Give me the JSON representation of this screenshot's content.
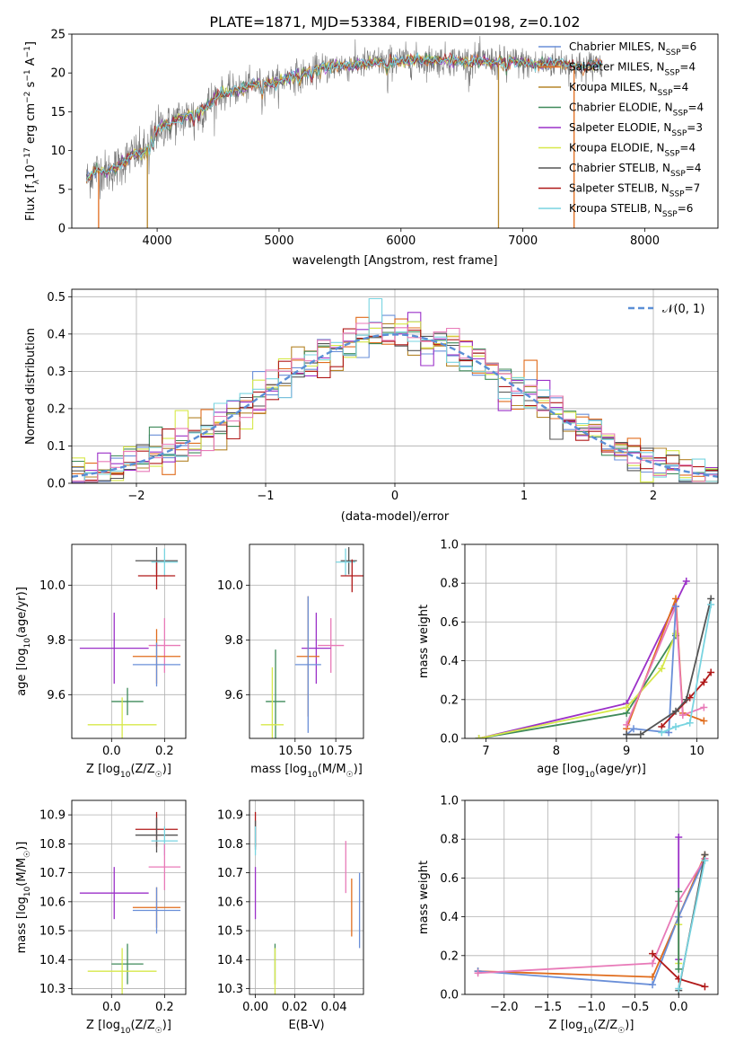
{
  "figure": {
    "title": "PLATE=1871, MJD=53384, FIBERID=0198, z=0.102"
  },
  "colors": {
    "Chabrier MILES": "#6a8fd8",
    "Salpeter MILES": "#e06c1c",
    "Kroupa MILES": "#b5852a",
    "Chabrier ELODIE": "#3f8a5a",
    "Salpeter ELODIE": "#9b30c8",
    "Kroupa ELODIE": "#d7e84a",
    "Chabrier STELIB": "#555555",
    "Salpeter STELIB": "#b01818",
    "Kroupa STELIB": "#78d4e0",
    "Extra pink": "#e87ab8",
    "Extra olive": "#9bbf2a",
    "normal": "#5b8fd6",
    "grid": "#b0b0b0"
  },
  "chart_data": [
    {
      "id": "spectrum",
      "type": "line",
      "xlabel": "wavelength [Angstrom, rest frame]",
      "ylabel": "Flux [f_λ10^-17 erg cm^-2 s^-1 A^-1]",
      "xlim": [
        3300,
        8600
      ],
      "ylim": [
        0,
        25
      ],
      "xticks": [
        4000,
        5000,
        6000,
        7000,
        8000
      ],
      "yticks": [
        0,
        5,
        10,
        15,
        20,
        25
      ],
      "grid": false,
      "legend_position": "right",
      "legend": [
        {
          "label": "Chabrier MILES, N",
          "sub": "SSP",
          "n": "=6",
          "color": "#6a8fd8"
        },
        {
          "label": "Salpeter MILES, N",
          "sub": "SSP",
          "n": "=4",
          "color": "#e06c1c"
        },
        {
          "label": "Kroupa MILES, N",
          "sub": "SSP",
          "n": "=4",
          "color": "#b5852a"
        },
        {
          "label": "Chabrier ELODIE, N",
          "sub": "SSP",
          "n": "=4",
          "color": "#3f8a5a"
        },
        {
          "label": "Salpeter ELODIE, N",
          "sub": "SSP",
          "n": "=3",
          "color": "#9b30c8"
        },
        {
          "label": "Kroupa ELODIE, N",
          "sub": "SSP",
          "n": "=4",
          "color": "#d7e84a"
        },
        {
          "label": "Chabrier STELIB, N",
          "sub": "SSP",
          "n": "=4",
          "color": "#555555"
        },
        {
          "label": "Salpeter STELIB, N",
          "sub": "SSP",
          "n": "=7",
          "color": "#b01818"
        },
        {
          "label": "Kroupa STELIB, N",
          "sub": "SSP",
          "n": "=6",
          "color": "#78d4e0"
        }
      ],
      "continuum": [
        [
          3420,
          6.2
        ],
        [
          3500,
          7.5
        ],
        [
          3600,
          7.2
        ],
        [
          3700,
          8.2
        ],
        [
          3800,
          9.5
        ],
        [
          3900,
          9.8
        ],
        [
          4000,
          12.8
        ],
        [
          4100,
          13.5
        ],
        [
          4200,
          14.2
        ],
        [
          4300,
          14.6
        ],
        [
          4400,
          15.6
        ],
        [
          4500,
          17.2
        ],
        [
          4600,
          17.6
        ],
        [
          4700,
          18.0
        ],
        [
          4800,
          18.5
        ],
        [
          4900,
          18.6
        ],
        [
          5000,
          18.8
        ],
        [
          5100,
          19.6
        ],
        [
          5200,
          19.8
        ],
        [
          5300,
          20.4
        ],
        [
          5400,
          20.7
        ],
        [
          5500,
          21.0
        ],
        [
          5600,
          21.0
        ],
        [
          5700,
          21.2
        ],
        [
          5800,
          21.4
        ],
        [
          5900,
          21.5
        ],
        [
          6000,
          21.6
        ],
        [
          6100,
          21.6
        ],
        [
          6200,
          21.6
        ],
        [
          6300,
          21.6
        ],
        [
          6400,
          21.7
        ],
        [
          6500,
          21.5
        ],
        [
          6600,
          21.6
        ],
        [
          6700,
          21.6
        ],
        [
          6800,
          21.3
        ],
        [
          6900,
          21.5
        ],
        [
          7000,
          21.3
        ],
        [
          7100,
          21.0
        ],
        [
          7200,
          21.2
        ],
        [
          7300,
          21.4
        ],
        [
          7400,
          21.0
        ],
        [
          7500,
          20.7
        ],
        [
          7600,
          21.2
        ]
      ],
      "dropouts": [
        {
          "x": 3520,
          "color": "#e06c1c"
        },
        {
          "x": 3920,
          "color": "#b5852a"
        },
        {
          "x": 6800,
          "color": "#b5852a"
        },
        {
          "x": 7420,
          "color": "#e06c1c"
        }
      ]
    },
    {
      "id": "residuals",
      "type": "step-histogram",
      "xlabel": "(data-model)/error",
      "ylabel": "Normed distribution",
      "xlim": [
        -2.5,
        2.5
      ],
      "ylim": [
        0,
        0.52
      ],
      "xticks": [
        -2,
        -1,
        0,
        1,
        2
      ],
      "yticks": [
        0.0,
        0.1,
        0.2,
        0.3,
        0.4,
        0.5
      ],
      "grid": true,
      "legend_position": "upper right",
      "normal_label": "𝒩(0, 1)",
      "bin_width": 0.1
    },
    {
      "id": "age_vs_Z",
      "type": "errorbar",
      "xlabel": "Z [log₁₀(Z/Z☉)]",
      "ylabel": "age  [log₁₀(age/yr)]",
      "xlim": [
        -0.15,
        0.28
      ],
      "ylim": [
        9.44,
        10.15
      ],
      "xticks": [
        0.0,
        0.2
      ],
      "yticks": [
        9.6,
        9.8,
        10.0
      ],
      "grid": true,
      "points": [
        {
          "x": 0.17,
          "xe": 0.08,
          "y": 10.09,
          "ye": 0.05,
          "color": "#555555"
        },
        {
          "x": 0.2,
          "xe": 0.05,
          "y": 10.085,
          "ye": 0.05,
          "color": "#78d4e0"
        },
        {
          "x": 0.17,
          "xe": 0.07,
          "y": 10.035,
          "ye": 0.05,
          "color": "#b01818"
        },
        {
          "x": 0.2,
          "xe": 0.06,
          "y": 9.78,
          "ye": 0.1,
          "color": "#e87ab8"
        },
        {
          "x": 0.01,
          "xe": 0.13,
          "y": 9.77,
          "ye": 0.13,
          "color": "#9b30c8"
        },
        {
          "x": 0.17,
          "xe": 0.09,
          "y": 9.74,
          "ye": 0.1,
          "color": "#e06c1c"
        },
        {
          "x": 0.17,
          "xe": 0.09,
          "y": 9.71,
          "ye": 0.08,
          "color": "#6a8fd8"
        },
        {
          "x": 0.06,
          "xe": 0.06,
          "y": 9.575,
          "ye": 0.05,
          "color": "#3f8a5a"
        },
        {
          "x": 0.04,
          "xe": 0.13,
          "y": 9.49,
          "ye": 0.1,
          "color": "#d7e84a"
        }
      ]
    },
    {
      "id": "age_vs_mass",
      "type": "errorbar",
      "xlabel": "mass [log₁₀(M/M☉)]",
      "ylabel": "",
      "xlim": [
        10.22,
        10.92
      ],
      "ylim": [
        9.44,
        10.15
      ],
      "xticks": [
        10.5,
        10.75
      ],
      "yticks": [
        9.6,
        9.8,
        10.0
      ],
      "grid": true,
      "points": [
        {
          "x": 10.83,
          "xe": 0.05,
          "y": 10.09,
          "ye": 0.05,
          "color": "#555555"
        },
        {
          "x": 10.81,
          "xe": 0.06,
          "y": 10.085,
          "ye": 0.05,
          "color": "#78d4e0"
        },
        {
          "x": 10.85,
          "xe": 0.07,
          "y": 10.035,
          "ye": 0.06,
          "color": "#b01818"
        },
        {
          "x": 10.72,
          "xe": 0.08,
          "y": 9.78,
          "ye": 0.1,
          "color": "#e87ab8"
        },
        {
          "x": 10.63,
          "xe": 0.09,
          "y": 9.77,
          "ye": 0.13,
          "color": "#9b30c8"
        },
        {
          "x": 10.58,
          "xe": 0.07,
          "y": 9.74,
          "ye": 0.22,
          "color": "#e06c1c"
        },
        {
          "x": 10.58,
          "xe": 0.08,
          "y": 9.71,
          "ye": 0.25,
          "color": "#6a8fd8"
        },
        {
          "x": 10.38,
          "xe": 0.06,
          "y": 9.575,
          "ye": 0.19,
          "color": "#3f8a5a"
        },
        {
          "x": 10.36,
          "xe": 0.07,
          "y": 9.49,
          "ye": 0.21,
          "color": "#d7e84a"
        }
      ]
    },
    {
      "id": "mass_vs_Z",
      "type": "errorbar",
      "xlabel": "Z [log₁₀(Z/Z☉)]",
      "ylabel": "mass [log₁₀(M/M☉)]",
      "xlim": [
        -0.15,
        0.28
      ],
      "ylim": [
        10.28,
        10.95
      ],
      "xticks": [
        0.0,
        0.2
      ],
      "yticks": [
        10.3,
        10.4,
        10.5,
        10.6,
        10.7,
        10.8,
        10.9
      ],
      "grid": true,
      "points": [
        {
          "x": 0.17,
          "xe": 0.08,
          "y": 10.85,
          "ye": 0.06,
          "color": "#b01818"
        },
        {
          "x": 0.17,
          "xe": 0.08,
          "y": 10.83,
          "ye": 0.06,
          "color": "#555555"
        },
        {
          "x": 0.2,
          "xe": 0.05,
          "y": 10.81,
          "ye": 0.05,
          "color": "#78d4e0"
        },
        {
          "x": 0.2,
          "xe": 0.06,
          "y": 10.72,
          "ye": 0.08,
          "color": "#e87ab8"
        },
        {
          "x": 0.01,
          "xe": 0.13,
          "y": 10.63,
          "ye": 0.09,
          "color": "#9b30c8"
        },
        {
          "x": 0.17,
          "xe": 0.09,
          "y": 10.58,
          "ye": 0.07,
          "color": "#e06c1c"
        },
        {
          "x": 0.17,
          "xe": 0.09,
          "y": 10.57,
          "ye": 0.08,
          "color": "#6a8fd8"
        },
        {
          "x": 0.06,
          "xe": 0.06,
          "y": 10.385,
          "ye": 0.07,
          "color": "#3f8a5a"
        },
        {
          "x": 0.04,
          "xe": 0.13,
          "y": 10.36,
          "ye": 0.08,
          "color": "#d7e84a"
        }
      ]
    },
    {
      "id": "mass_vs_ebv",
      "type": "errorbar",
      "xlabel": "E(B-V)",
      "ylabel": "",
      "xlim": [
        -0.003,
        0.055
      ],
      "ylim": [
        10.28,
        10.95
      ],
      "xticks": [
        0.0,
        0.02,
        0.04
      ],
      "yticks": [
        10.3,
        10.4,
        10.5,
        10.6,
        10.7,
        10.8,
        10.9
      ],
      "grid": true,
      "points": [
        {
          "x": 0.0,
          "y": 10.85,
          "ye": 0.06,
          "color": "#b01818"
        },
        {
          "x": 0.0,
          "y": 10.83,
          "ye": 0.05,
          "color": "#555555"
        },
        {
          "x": 0.0,
          "y": 10.81,
          "ye": 0.05,
          "color": "#78d4e0"
        },
        {
          "x": 0.046,
          "y": 10.72,
          "ye": 0.09,
          "color": "#e87ab8"
        },
        {
          "x": 0.0,
          "y": 10.63,
          "ye": 0.09,
          "color": "#9b30c8"
        },
        {
          "x": 0.049,
          "y": 10.58,
          "ye": 0.1,
          "color": "#e06c1c"
        },
        {
          "x": 0.053,
          "y": 10.57,
          "ye": 0.13,
          "color": "#6a8fd8"
        },
        {
          "x": 0.01,
          "y": 10.385,
          "ye": 0.07,
          "color": "#3f8a5a"
        },
        {
          "x": 0.01,
          "y": 10.36,
          "ye": 0.08,
          "color": "#d7e84a"
        }
      ]
    },
    {
      "id": "weight_vs_age",
      "type": "line",
      "xlabel": "age  [log₁₀(age/yr)]",
      "ylabel": "mass weight",
      "xlim": [
        6.7,
        10.3
      ],
      "ylim": [
        0,
        1.0
      ],
      "xticks": [
        7,
        8,
        9,
        10
      ],
      "yticks": [
        0.0,
        0.2,
        0.4,
        0.6,
        0.8,
        1.0
      ],
      "grid": true,
      "series": [
        {
          "color": "#9b30c8",
          "points": [
            [
              6.9,
              0.0
            ],
            [
              9.0,
              0.18
            ],
            [
              9.85,
              0.81
            ]
          ]
        },
        {
          "color": "#3f8a5a",
          "points": [
            [
              6.9,
              0.0
            ],
            [
              9.0,
              0.13
            ],
            [
              9.7,
              0.53
            ]
          ]
        },
        {
          "color": "#d7e84a",
          "points": [
            [
              6.9,
              0.0
            ],
            [
              9.0,
              0.16
            ],
            [
              9.5,
              0.36
            ],
            [
              9.7,
              0.54
            ]
          ]
        },
        {
          "color": "#e06c1c",
          "points": [
            [
              9.0,
              0.05
            ],
            [
              9.7,
              0.72
            ],
            [
              9.8,
              0.13
            ],
            [
              10.1,
              0.09
            ]
          ]
        },
        {
          "color": "#e87ab8",
          "points": [
            [
              9.0,
              0.07
            ],
            [
              9.7,
              0.68
            ],
            [
              9.8,
              0.12
            ],
            [
              10.1,
              0.16
            ]
          ]
        },
        {
          "color": "#6a8fd8",
          "points": [
            [
              9.0,
              0.02
            ],
            [
              9.1,
              0.05
            ],
            [
              9.6,
              0.03
            ],
            [
              9.7,
              0.68
            ]
          ]
        },
        {
          "color": "#b01818",
          "points": [
            [
              9.5,
              0.06
            ],
            [
              9.9,
              0.21
            ],
            [
              10.1,
              0.29
            ],
            [
              10.2,
              0.34
            ]
          ]
        },
        {
          "color": "#555555",
          "points": [
            [
              9.0,
              0.02
            ],
            [
              9.2,
              0.02
            ],
            [
              9.7,
              0.14
            ],
            [
              9.85,
              0.2
            ],
            [
              10.2,
              0.72
            ]
          ]
        },
        {
          "color": "#78d4e0",
          "points": [
            [
              9.5,
              0.03
            ],
            [
              9.7,
              0.06
            ],
            [
              9.9,
              0.08
            ],
            [
              10.2,
              0.69
            ]
          ]
        }
      ]
    },
    {
      "id": "weight_vs_Z",
      "type": "line",
      "xlabel": "Z [log₁₀(Z/Z☉)]",
      "ylabel": "mass weight",
      "xlim": [
        -2.45,
        0.45
      ],
      "ylim": [
        0,
        1.0
      ],
      "xticks": [
        -2.0,
        -1.5,
        -1.0,
        -0.5,
        0.0
      ],
      "yticks": [
        0.0,
        0.2,
        0.4,
        0.6,
        0.8,
        1.0
      ],
      "grid": true,
      "series": [
        {
          "color": "#e06c1c",
          "points": [
            [
              -2.3,
              0.12
            ],
            [
              -0.3,
              0.09
            ],
            [
              0.0,
              0.4
            ],
            [
              0.3,
              0.72
            ]
          ]
        },
        {
          "color": "#6a8fd8",
          "points": [
            [
              -2.3,
              0.12
            ],
            [
              -0.3,
              0.05
            ],
            [
              0.0,
              0.4
            ],
            [
              0.3,
              0.7
            ]
          ]
        },
        {
          "color": "#e87ab8",
          "points": [
            [
              -2.3,
              0.11
            ],
            [
              -0.3,
              0.16
            ],
            [
              0.0,
              0.48
            ],
            [
              0.3,
              0.7
            ]
          ]
        },
        {
          "color": "#b01818",
          "points": [
            [
              -0.3,
              0.21
            ],
            [
              0.0,
              0.08
            ],
            [
              0.3,
              0.04
            ]
          ]
        },
        {
          "color": "#9b30c8",
          "points": [
            [
              0.0,
              0.81
            ],
            [
              0.0,
              0.18
            ]
          ]
        },
        {
          "color": "#d7e84a",
          "points": [
            [
              0.0,
              0.36
            ],
            [
              0.0,
              0.16
            ]
          ]
        },
        {
          "color": "#555555",
          "points": [
            [
              0.0,
              0.02
            ],
            [
              0.3,
              0.72
            ]
          ]
        },
        {
          "color": "#78d4e0",
          "points": [
            [
              0.0,
              0.03
            ],
            [
              0.3,
              0.69
            ]
          ]
        },
        {
          "color": "#3f8a5a",
          "points": [
            [
              0.0,
              0.53
            ],
            [
              0.0,
              0.13
            ]
          ]
        }
      ]
    }
  ]
}
